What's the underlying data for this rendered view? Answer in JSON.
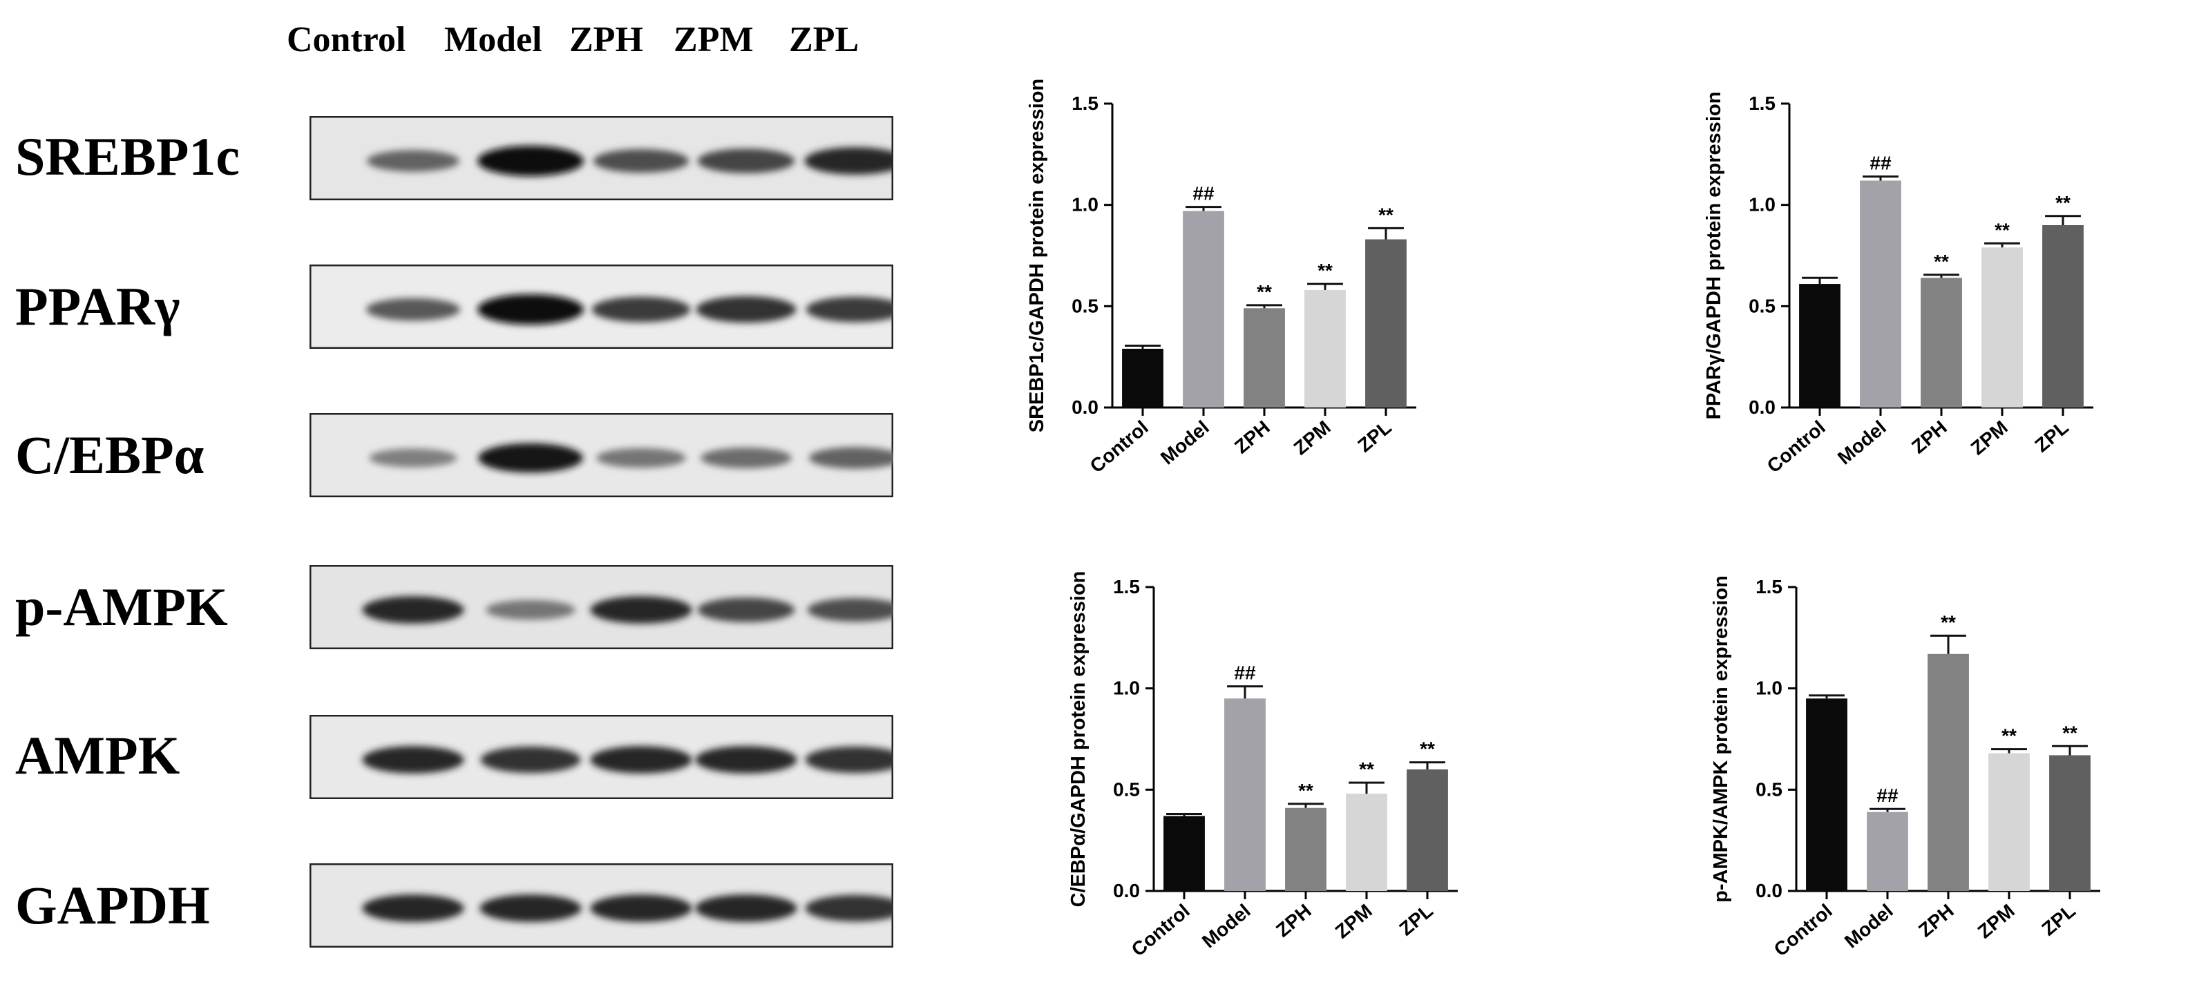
{
  "lanes": [
    "Control",
    "Model",
    "ZPH",
    "ZPM",
    "ZPL"
  ],
  "blots": [
    {
      "label": "SREBP1c",
      "intensity": [
        0.55,
        1.0,
        0.65,
        0.7,
        0.85
      ],
      "bg": "#e6e6e6"
    },
    {
      "label": "PPARγ",
      "intensity": [
        0.6,
        1.0,
        0.75,
        0.8,
        0.75
      ],
      "bg": "#ececec"
    },
    {
      "label": "C/EBPα",
      "intensity": [
        0.4,
        0.95,
        0.45,
        0.5,
        0.55
      ],
      "bg": "#e8e8e8"
    },
    {
      "label": "p-AMPK",
      "intensity": [
        0.85,
        0.45,
        0.85,
        0.7,
        0.65
      ],
      "bg": "#e4e4e4"
    },
    {
      "label": "AMPK",
      "intensity": [
        0.85,
        0.8,
        0.85,
        0.85,
        0.8
      ],
      "bg": "#e9e9e9"
    },
    {
      "label": "GAPDH",
      "intensity": [
        0.85,
        0.85,
        0.85,
        0.85,
        0.8
      ],
      "bg": "#e7e7e7"
    }
  ],
  "chart_data": [
    {
      "type": "bar",
      "categories": [
        "Control",
        "Model",
        "ZPH",
        "ZPM",
        "ZPL"
      ],
      "values": [
        0.29,
        0.97,
        0.49,
        0.58,
        0.83
      ],
      "errors": [
        0.015,
        0.02,
        0.015,
        0.03,
        0.055
      ],
      "annotations": [
        "",
        "##",
        "**",
        "**",
        "**"
      ],
      "colors": [
        "#0a0a0a",
        "#a2a2a8",
        "#828282",
        "#d6d6d6",
        "#606060"
      ],
      "ylabel": "SREBP1c/GAPDH protein expression",
      "ylim": [
        0,
        1.5
      ],
      "yticks": [
        "0.0",
        "0.5",
        "1.0",
        "1.5"
      ]
    },
    {
      "type": "bar",
      "categories": [
        "Control",
        "Model",
        "ZPH",
        "ZPM",
        "ZPL"
      ],
      "values": [
        0.61,
        1.12,
        0.64,
        0.79,
        0.9
      ],
      "errors": [
        0.03,
        0.02,
        0.015,
        0.02,
        0.045
      ],
      "annotations": [
        "",
        "##",
        "**",
        "**",
        "**"
      ],
      "colors": [
        "#0a0a0a",
        "#a2a2a8",
        "#828282",
        "#d6d6d6",
        "#606060"
      ],
      "ylabel": "PPARγ/GAPDH protein expression",
      "ylim": [
        0,
        1.5
      ],
      "yticks": [
        "0.0",
        "0.5",
        "1.0",
        "1.5"
      ]
    },
    {
      "type": "bar",
      "categories": [
        "Control",
        "Model",
        "ZPH",
        "ZPM",
        "ZPL"
      ],
      "values": [
        0.37,
        0.95,
        0.41,
        0.48,
        0.6
      ],
      "errors": [
        0.01,
        0.06,
        0.02,
        0.055,
        0.035
      ],
      "annotations": [
        "",
        "##",
        "**",
        "**",
        "**"
      ],
      "colors": [
        "#0a0a0a",
        "#a2a2a8",
        "#828282",
        "#d6d6d6",
        "#606060"
      ],
      "ylabel": "C/EBPα/GAPDH protein expression",
      "ylim": [
        0,
        1.5
      ],
      "yticks": [
        "0.0",
        "0.5",
        "1.0",
        "1.5"
      ]
    },
    {
      "type": "bar",
      "categories": [
        "Control",
        "Model",
        "ZPH",
        "ZPM",
        "ZPL"
      ],
      "values": [
        0.95,
        0.39,
        1.17,
        0.68,
        0.67
      ],
      "errors": [
        0.015,
        0.015,
        0.09,
        0.02,
        0.045
      ],
      "annotations": [
        "",
        "##",
        "**",
        "**",
        "**"
      ],
      "colors": [
        "#0a0a0a",
        "#a2a2a8",
        "#828282",
        "#d6d6d6",
        "#606060"
      ],
      "ylabel": "p-AMPK/AMPK protein expression",
      "ylim": [
        0,
        1.5
      ],
      "yticks": [
        "0.0",
        "0.5",
        "1.0",
        "1.5"
      ]
    }
  ]
}
